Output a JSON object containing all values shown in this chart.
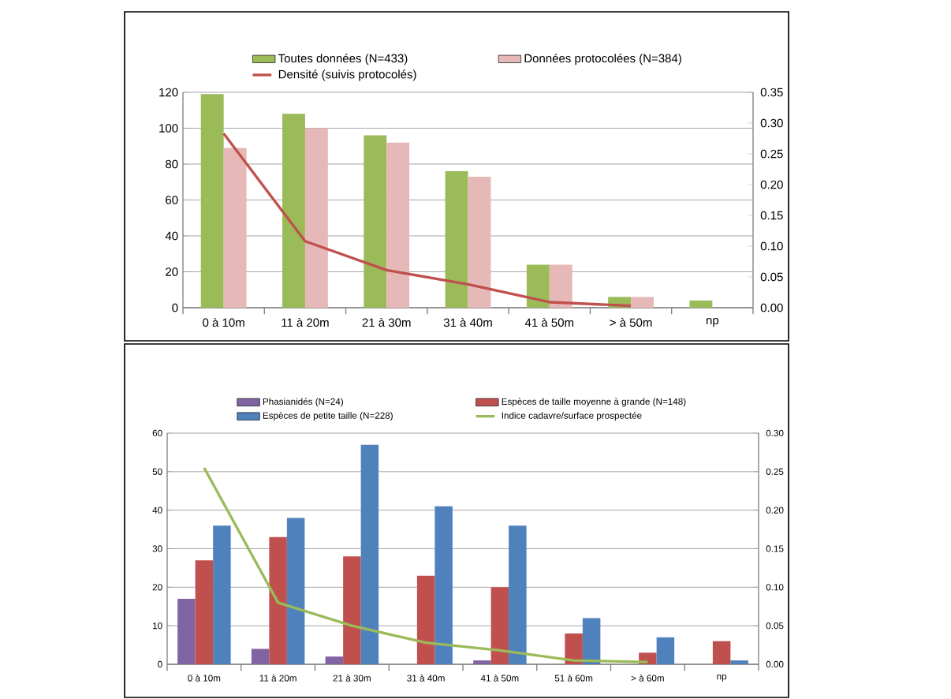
{
  "chart_data": [
    {
      "type": "bar",
      "categories": [
        "0 à 10m",
        "11 à 20m",
        "21 à 30m",
        "31 à 40m",
        "41 à 50m",
        "> à 50m",
        "np"
      ],
      "series": [
        {
          "name": "Toutes données (N=433)",
          "color": "#9bbb59",
          "values": [
            119,
            108,
            96,
            76,
            24,
            6,
            4
          ]
        },
        {
          "name": "Données protocolées (N=384)",
          "color": "#e6b9b8",
          "values": [
            89,
            100,
            92,
            73,
            24,
            6,
            null
          ]
        },
        {
          "name": "Densité (suivis protocolés)",
          "type": "line",
          "axis": "y2",
          "color": "#c0504d",
          "values": [
            0.283,
            0.108,
            0.061,
            0.038,
            0.009,
            0.003,
            null
          ]
        }
      ],
      "ylim": [
        0,
        120
      ],
      "yticks": [
        0,
        20,
        40,
        60,
        80,
        100,
        120
      ],
      "y2lim": [
        0,
        0.35
      ],
      "y2ticks": [
        {
          "value": 0,
          "label": "0.00"
        },
        {
          "value": 0.05,
          "label": "0.05"
        },
        {
          "value": 0.1,
          "label": "0.10"
        },
        {
          "value": 0.15,
          "label": "0.15"
        },
        {
          "value": 0.2,
          "label": "0.20"
        },
        {
          "value": 0.25,
          "label": "0.25"
        },
        {
          "value": 0.3,
          "label": "0.30"
        },
        {
          "value": 0.35,
          "label": "0.35"
        }
      ],
      "grid": "y",
      "legend": "top"
    },
    {
      "type": "bar",
      "categories": [
        "0 à 10m",
        "11 à 20m",
        "21 à 30m",
        "31 à 40m",
        "41 à 50m",
        "51 à 60m",
        "> à 60m",
        "np"
      ],
      "series": [
        {
          "name": "Phasianidés (N=24)",
          "color": "#8064a2",
          "values": [
            17,
            4,
            2,
            null,
            1,
            null,
            null,
            null
          ]
        },
        {
          "name": "Espèces de taille moyenne à grande (N=148)",
          "color": "#c0504d",
          "values": [
            27,
            33,
            28,
            23,
            20,
            8,
            3,
            6
          ]
        },
        {
          "name": "Espèces de petite taille (N=228)",
          "color": "#4f81bd",
          "values": [
            36,
            38,
            57,
            41,
            36,
            12,
            7,
            1
          ]
        },
        {
          "name": "Indice cadavre/surface prospectée",
          "type": "line",
          "axis": "y2",
          "color": "#9bbb59",
          "values": [
            0.255,
            0.08,
            0.05,
            0.028,
            0.018,
            0.005,
            0.003,
            null
          ]
        }
      ],
      "ylim": [
        0,
        60
      ],
      "yticks": [
        0,
        10,
        20,
        30,
        40,
        50,
        60
      ],
      "y2lim": [
        0,
        0.3
      ],
      "y2ticks": [
        {
          "value": 0,
          "label": "0.00"
        },
        {
          "value": 0.05,
          "label": "0.05"
        },
        {
          "value": 0.1,
          "label": "0.10"
        },
        {
          "value": 0.15,
          "label": "0.15"
        },
        {
          "value": 0.2,
          "label": "0.20"
        },
        {
          "value": 0.25,
          "label": "0.25"
        },
        {
          "value": 0.3,
          "label": "0.30"
        }
      ],
      "grid": "y",
      "legend": "top"
    }
  ]
}
